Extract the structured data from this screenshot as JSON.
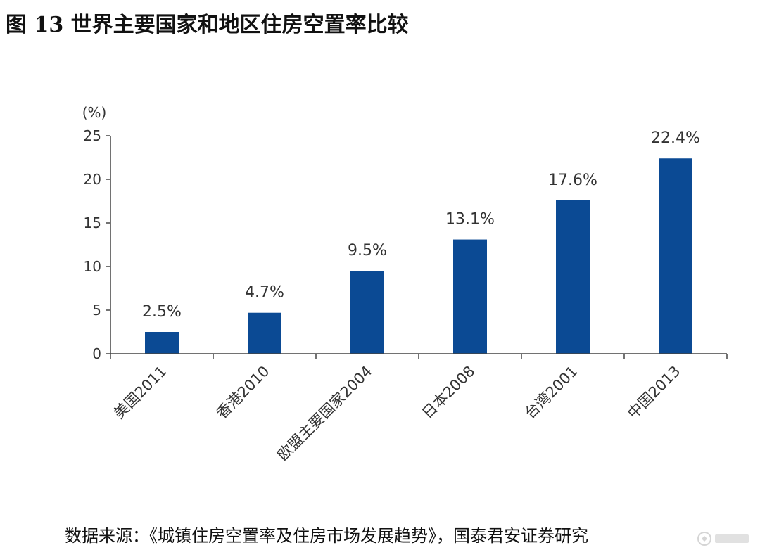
{
  "figure": {
    "title": "图 13  世界主要国家和地区住房空置率比较",
    "source": "数据来源：《城镇住房空置率及住房市场发展趋势》，国泰君安证券研究"
  },
  "chart_data": {
    "type": "bar",
    "categories": [
      "美国2011",
      "香港2010",
      "欧盟主要国家2004",
      "日本2008",
      "台湾2001",
      "中国2013"
    ],
    "values": [
      2.5,
      4.7,
      9.5,
      13.1,
      17.6,
      22.4
    ],
    "data_labels": [
      "2.5%",
      "4.7%",
      "9.5%",
      "13.1%",
      "17.6%",
      "22.4%"
    ],
    "unit_label": "(%)",
    "ylim": [
      0,
      25
    ],
    "yticks": [
      0,
      5,
      10,
      15,
      20,
      25
    ],
    "grid": false,
    "legend": "none",
    "bar_color": "#0B4A94",
    "axis_color": "#444444"
  }
}
